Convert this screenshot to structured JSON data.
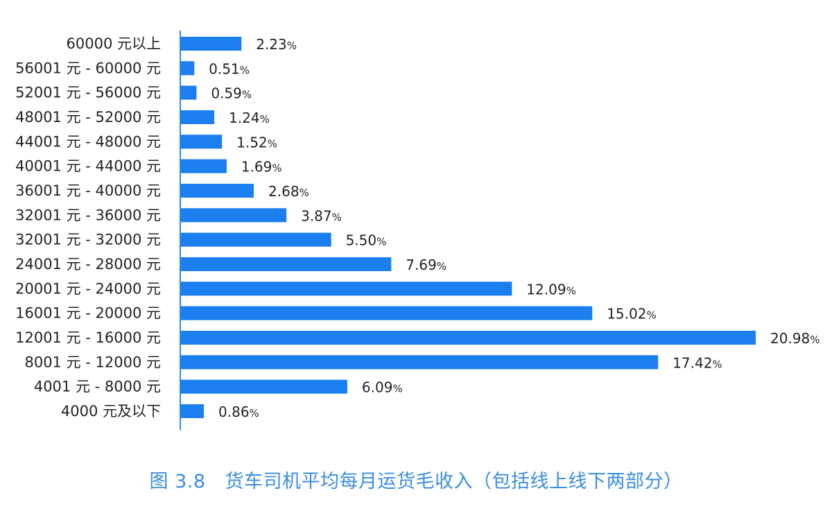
{
  "chart_data": {
    "type": "bar",
    "orientation": "horizontal",
    "title": "货车司机平均每月运货毛收入（包括线上线下两部分）",
    "figure_number": "图 3.8",
    "categories": [
      "60000 元以上",
      "56001 元 - 60000 元",
      "52001 元 - 56000 元",
      "48001 元 - 52000 元",
      "44001 元 - 48000 元",
      "40001 元 - 44000 元",
      "36001 元 - 40000 元",
      "32001 元 - 36000 元",
      "32001 元 - 32000 元",
      "24001 元 - 28000 元",
      "20001 元 - 24000 元",
      "16001 元 - 20000 元",
      "12001 元 - 16000 元",
      "8001 元 - 12000 元",
      "4001 元 - 8000 元",
      "4000 元及以下"
    ],
    "values": [
      2.23,
      0.51,
      0.59,
      1.24,
      1.52,
      1.69,
      2.68,
      3.87,
      5.5,
      7.69,
      12.09,
      15.02,
      20.98,
      17.42,
      6.09,
      0.86
    ],
    "value_labels": [
      "2.23",
      "0.51",
      "0.59",
      "1.24",
      "1.52",
      "1.69",
      "2.68",
      "3.87",
      "5.50",
      "7.69",
      "12.09",
      "15.02",
      "20.98",
      "17.42",
      "6.09",
      "0.86"
    ],
    "unit": "%",
    "xlabel": "",
    "ylabel": "",
    "xlim": [
      0,
      21
    ],
    "grid": false,
    "bar_color": "#1a7ff0",
    "caption_color": "#3a8de0"
  }
}
